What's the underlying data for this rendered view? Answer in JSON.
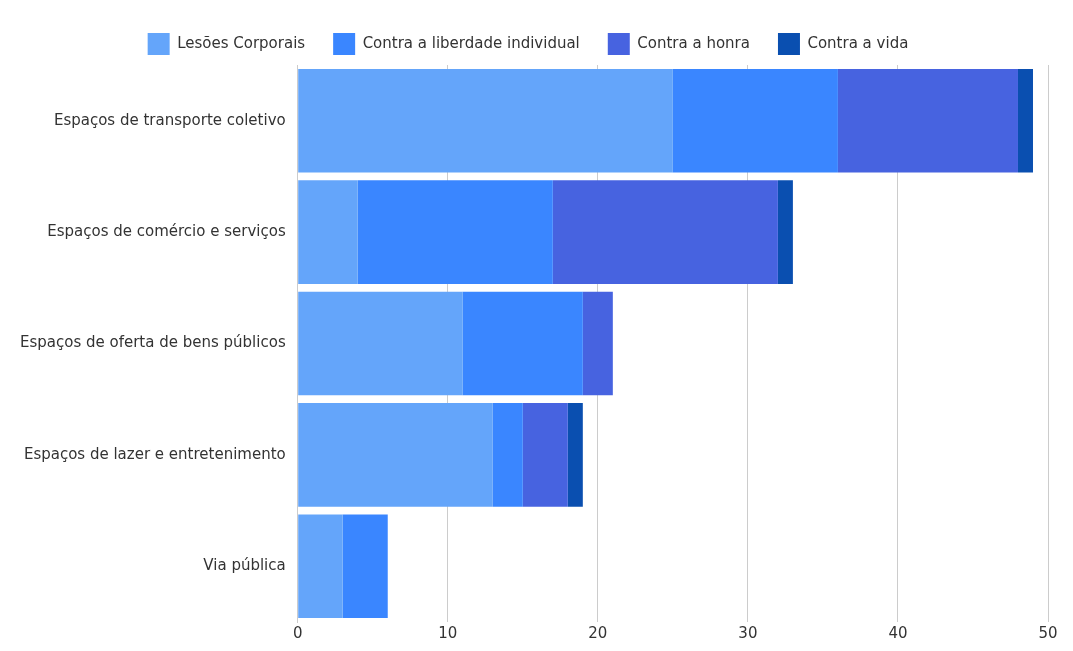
{
  "chart_data": {
    "type": "bar",
    "orientation": "horizontal",
    "stacked": true,
    "categories": [
      "Espaços de transporte coletivo",
      "Espaços de comércio e serviços",
      "Espaços de oferta de bens públicos",
      "Espaços de lazer e entretenimento",
      "Via pública"
    ],
    "series": [
      {
        "name": "Lesões Corporais",
        "color": "#64a5fa",
        "values": [
          25,
          4,
          11,
          13,
          3
        ]
      },
      {
        "name": "Contra a liberdade individual",
        "color": "#3a86ff",
        "values": [
          11,
          13,
          8,
          2,
          3
        ]
      },
      {
        "name": "Contra a honra",
        "color": "#4763e0",
        "values": [
          12,
          15,
          2,
          3,
          0
        ]
      },
      {
        "name": "Contra a vida",
        "color": "#0a4fb0",
        "values": [
          1,
          1,
          0,
          1,
          0
        ]
      }
    ],
    "xlim": [
      0,
      50
    ],
    "xticks": [
      0,
      10,
      20,
      30,
      40,
      50
    ],
    "grid": "x",
    "legend": "top"
  }
}
